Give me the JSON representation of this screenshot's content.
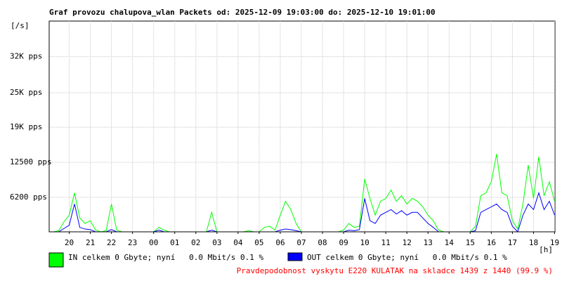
{
  "chart_data": {
    "type": "line",
    "title": "Graf provozu chalupova_wlan Packets od: 2025-12-09 19:03:00 do: 2025-12-10 19:01:00",
    "y_label": "[/s]",
    "x_label": "[h]",
    "annotation": "Pravdepodobnost vyskytu E220 KULATAK na skladce 1439 z 1440 (99.9 %)",
    "grid": true,
    "xlim": [
      19.05,
      43.0167
    ],
    "ylim": [
      0,
      37900
    ],
    "yticks": [
      {
        "value": 6200,
        "label": "6200 pps"
      },
      {
        "value": 12500,
        "label": "12500 pps"
      },
      {
        "value": 18800,
        "label": "19K pps"
      },
      {
        "value": 25000,
        "label": "25K pps"
      },
      {
        "value": 31500,
        "label": "32K pps"
      }
    ],
    "xticks": [
      20,
      21,
      22,
      23,
      {
        "value": 24,
        "label": "00"
      },
      {
        "value": 25,
        "label": "01"
      },
      {
        "value": 26,
        "label": "02"
      },
      {
        "value": 27,
        "label": "03"
      },
      {
        "value": 28,
        "label": "04"
      },
      {
        "value": 29,
        "label": "05"
      },
      {
        "value": 30,
        "label": "06"
      },
      {
        "value": 31,
        "label": "07"
      },
      {
        "value": 32,
        "label": "08"
      },
      {
        "value": 33,
        "label": "09"
      },
      {
        "value": 34,
        "label": "10"
      },
      {
        "value": 35,
        "label": "11"
      },
      {
        "value": 36,
        "label": "12"
      },
      {
        "value": 37,
        "label": "13"
      },
      {
        "value": 38,
        "label": "14"
      },
      {
        "value": 39,
        "label": "15"
      },
      {
        "value": 40,
        "label": "16"
      },
      {
        "value": 41,
        "label": "17"
      },
      {
        "value": 42,
        "label": "18"
      },
      {
        "value": 43,
        "label": "19"
      }
    ],
    "x": [
      19.25,
      19.5,
      19.75,
      20,
      20.25,
      20.5,
      20.75,
      21,
      21.25,
      21.5,
      21.75,
      22,
      22.25,
      22.5,
      22.75,
      23,
      23.25,
      23.5,
      23.75,
      24,
      24.25,
      24.5,
      24.75,
      25,
      25.25,
      25.5,
      25.75,
      26,
      26.25,
      26.5,
      26.75,
      27,
      27.25,
      27.5,
      27.75,
      28,
      28.25,
      28.5,
      28.75,
      29,
      29.25,
      29.5,
      29.75,
      30,
      30.25,
      30.5,
      30.75,
      31,
      31.25,
      31.5,
      31.75,
      32,
      32.25,
      32.5,
      32.75,
      33,
      33.25,
      33.5,
      33.75,
      34,
      34.25,
      34.5,
      34.75,
      35,
      35.25,
      35.5,
      35.75,
      36,
      36.25,
      36.5,
      36.75,
      37,
      37.25,
      37.5,
      37.75,
      38,
      38.25,
      38.5,
      38.75,
      39,
      39.25,
      39.5,
      39.75,
      40,
      40.25,
      40.5,
      40.75,
      41,
      41.25,
      41.5,
      41.75,
      42,
      42.25,
      42.5,
      42.75,
      43
    ],
    "series": [
      {
        "name": "IN celkem 0 Gbyte; nyní   0.0 Mbit/s 0.1 %",
        "color": "#00ff00",
        "values": [
          0,
          200,
          1800,
          3000,
          7000,
          2500,
          1500,
          2000,
          300,
          0,
          200,
          5000,
          300,
          0,
          0,
          0,
          0,
          0,
          0,
          0,
          800,
          300,
          0,
          0,
          0,
          0,
          0,
          0,
          0,
          0,
          3500,
          0,
          0,
          0,
          0,
          0,
          0,
          200,
          0,
          0,
          800,
          1000,
          300,
          3000,
          5500,
          4000,
          1500,
          0,
          0,
          0,
          0,
          0,
          0,
          0,
          0,
          300,
          1500,
          800,
          1000,
          9500,
          6000,
          3000,
          5500,
          6000,
          7500,
          5500,
          6500,
          5000,
          6000,
          5500,
          4500,
          3000,
          2000,
          300,
          0,
          0,
          0,
          0,
          0,
          0,
          1000,
          6500,
          7000,
          9000,
          14000,
          7000,
          6500,
          2000,
          500,
          5000,
          12000,
          6000,
          13500,
          6500,
          9000,
          5500
        ]
      },
      {
        "name": "OUT celkem 0 Gbyte; nyní   0.0 Mbit/s 0.1 %",
        "color": "#0000ff",
        "values": [
          0,
          0,
          600,
          1200,
          5000,
          800,
          500,
          400,
          0,
          0,
          0,
          400,
          0,
          0,
          0,
          0,
          0,
          0,
          0,
          0,
          300,
          0,
          0,
          0,
          0,
          0,
          0,
          0,
          0,
          0,
          300,
          0,
          0,
          0,
          0,
          0,
          0,
          0,
          0,
          0,
          0,
          0,
          0,
          300,
          500,
          400,
          200,
          0,
          0,
          0,
          0,
          0,
          0,
          0,
          0,
          0,
          300,
          200,
          400,
          6000,
          2000,
          1500,
          3000,
          3500,
          4000,
          3200,
          3800,
          3000,
          3500,
          3500,
          2500,
          1500,
          800,
          0,
          0,
          0,
          0,
          0,
          0,
          0,
          200,
          3500,
          4000,
          4500,
          5000,
          4000,
          3500,
          1000,
          0,
          3000,
          5000,
          4000,
          7000,
          4000,
          5500,
          3000
        ]
      }
    ]
  }
}
